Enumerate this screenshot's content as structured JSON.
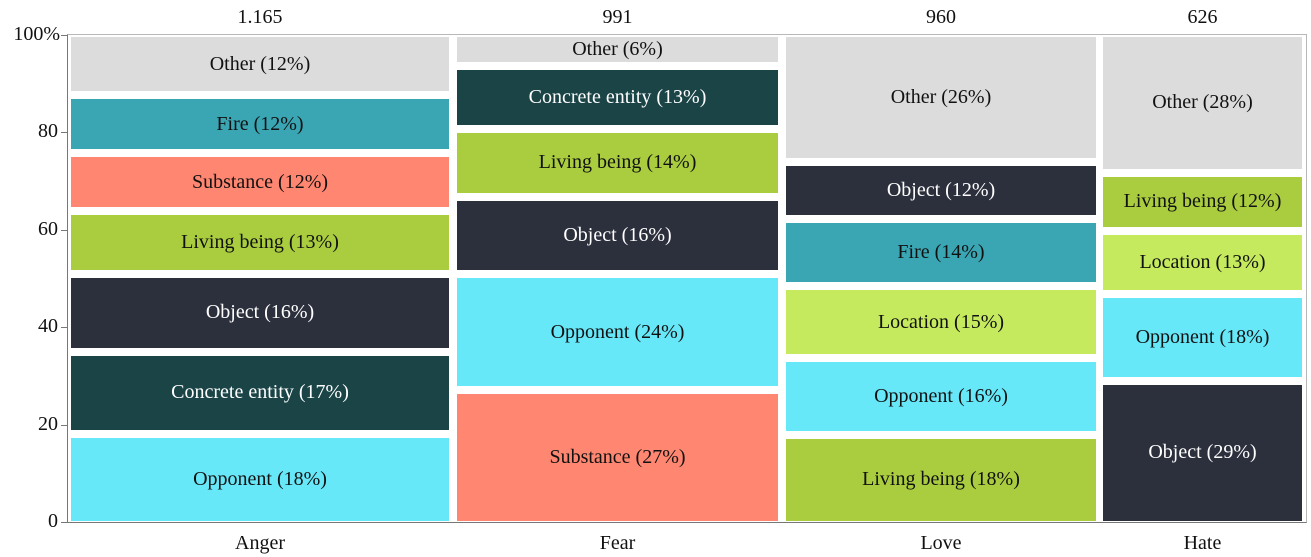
{
  "chart_data": {
    "type": "bar",
    "subtype": "mosaic / stacked 100% with variable widths",
    "title": "",
    "xlabel": "",
    "ylabel": "",
    "ylim": [
      0,
      100
    ],
    "yticks": [
      "0",
      "20",
      "40",
      "60",
      "80",
      "100%"
    ],
    "categories": [
      "Anger",
      "Fear",
      "Love",
      "Hate"
    ],
    "totals": [
      "1.165",
      "991",
      "960",
      "626"
    ],
    "columns": [
      {
        "name": "Anger",
        "total": "1.165",
        "segments": [
          {
            "label": "Opponent (18%)",
            "category": "Opponent",
            "value": 18,
            "color": "#67e8f9",
            "text": "dark"
          },
          {
            "label": "Concrete entity (17%)",
            "category": "Concrete entity",
            "value": 17,
            "color": "#1b4447",
            "text": "light"
          },
          {
            "label": "Object (16%)",
            "category": "Object",
            "value": 16,
            "color": "#2c2f3c",
            "text": "light"
          },
          {
            "label": "Living being (13%)",
            "category": "Living being",
            "value": 13,
            "color": "#aacd3f",
            "text": "dark"
          },
          {
            "label": "Substance (12%)",
            "category": "Substance",
            "value": 12,
            "color": "#ff8670",
            "text": "dark"
          },
          {
            "label": "Fire (12%)",
            "category": "Fire",
            "value": 12,
            "color": "#3aa6b4",
            "text": "dark"
          },
          {
            "label": "Other (12%)",
            "category": "Other",
            "value": 12,
            "color": "#dcdcdc",
            "text": "dark"
          }
        ]
      },
      {
        "name": "Fear",
        "total": "991",
        "segments": [
          {
            "label": "Substance (27%)",
            "category": "Substance",
            "value": 27,
            "color": "#ff8670",
            "text": "dark"
          },
          {
            "label": "Opponent (24%)",
            "category": "Opponent",
            "value": 24,
            "color": "#67e8f9",
            "text": "dark"
          },
          {
            "label": "Object (16%)",
            "category": "Object",
            "value": 16,
            "color": "#2c2f3c",
            "text": "light"
          },
          {
            "label": "Living being (14%)",
            "category": "Living being",
            "value": 14,
            "color": "#aacd3f",
            "text": "dark"
          },
          {
            "label": "Concrete entity (13%)",
            "category": "Concrete entity",
            "value": 13,
            "color": "#1b4447",
            "text": "light"
          },
          {
            "label": "Other (6%)",
            "category": "Other",
            "value": 6,
            "color": "#dcdcdc",
            "text": "dark"
          }
        ]
      },
      {
        "name": "Love",
        "total": "960",
        "segments": [
          {
            "label": "Living being (18%)",
            "category": "Living being",
            "value": 18,
            "color": "#aacd3f",
            "text": "dark"
          },
          {
            "label": "Opponent (16%)",
            "category": "Opponent",
            "value": 16,
            "color": "#67e8f9",
            "text": "dark"
          },
          {
            "label": "Location (15%)",
            "category": "Location",
            "value": 15,
            "color": "#c6ea5e",
            "text": "dark"
          },
          {
            "label": "Fire (14%)",
            "category": "Fire",
            "value": 14,
            "color": "#3aa6b4",
            "text": "dark"
          },
          {
            "label": "Object (12%)",
            "category": "Object",
            "value": 12,
            "color": "#2c2f3c",
            "text": "light"
          },
          {
            "label": "Other (26%)",
            "category": "Other",
            "value": 26,
            "color": "#dcdcdc",
            "text": "dark"
          }
        ]
      },
      {
        "name": "Hate",
        "total": "626",
        "segments": [
          {
            "label": "Object (29%)",
            "category": "Object",
            "value": 29,
            "color": "#2c2f3c",
            "text": "light"
          },
          {
            "label": "Opponent (18%)",
            "category": "Opponent",
            "value": 18,
            "color": "#67e8f9",
            "text": "dark"
          },
          {
            "label": "Location (13%)",
            "category": "Location",
            "value": 13,
            "color": "#c6ea5e",
            "text": "dark"
          },
          {
            "label": "Living being (12%)",
            "category": "Living being",
            "value": 12,
            "color": "#aacd3f",
            "text": "dark"
          },
          {
            "label": "Other (28%)",
            "category": "Other",
            "value": 28,
            "color": "#dcdcdc",
            "text": "dark"
          }
        ]
      }
    ]
  }
}
